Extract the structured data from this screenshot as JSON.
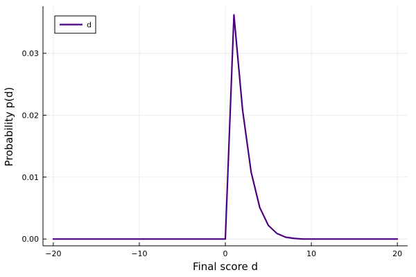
{
  "chart_data": {
    "type": "line",
    "xlabel": "Final score d",
    "ylabel": "Probability p(d)",
    "xlim": [
      -21.2,
      21.2
    ],
    "ylim": [
      -0.0011,
      0.0376
    ],
    "x_ticks": [
      -20,
      -10,
      0,
      10,
      20
    ],
    "x_tick_labels": [
      "−20",
      "−10",
      "0",
      "10",
      "20"
    ],
    "y_ticks": [
      0,
      0.01,
      0.02,
      0.03
    ],
    "y_tick_labels": [
      "0.00",
      "0.01",
      "0.02",
      "0.03"
    ],
    "grid": true,
    "legend": {
      "position": "top-left"
    },
    "series": [
      {
        "name": "d",
        "color": "#4b0082",
        "x": [
          -20,
          -19,
          -18,
          -17,
          -16,
          -15,
          -14,
          -13,
          -12,
          -11,
          -10,
          -9,
          -8,
          -7,
          -6,
          -5,
          -4,
          -3,
          -2,
          -1,
          0,
          1,
          2,
          3,
          4,
          5,
          6,
          7,
          8,
          9,
          10,
          11,
          12,
          13,
          14,
          15,
          16,
          17,
          18,
          19,
          20
        ],
        "y": [
          0,
          0,
          0,
          0,
          0,
          0,
          0,
          0,
          0,
          0,
          0,
          0,
          0,
          0,
          0,
          0,
          0,
          0,
          0,
          0,
          0,
          0.0362,
          0.0209,
          0.0108,
          0.0051,
          0.0022,
          0.0009,
          0.0003,
          0.0001,
          0,
          0,
          0,
          0,
          0,
          0,
          0,
          0,
          0,
          0,
          0,
          0
        ]
      }
    ]
  }
}
